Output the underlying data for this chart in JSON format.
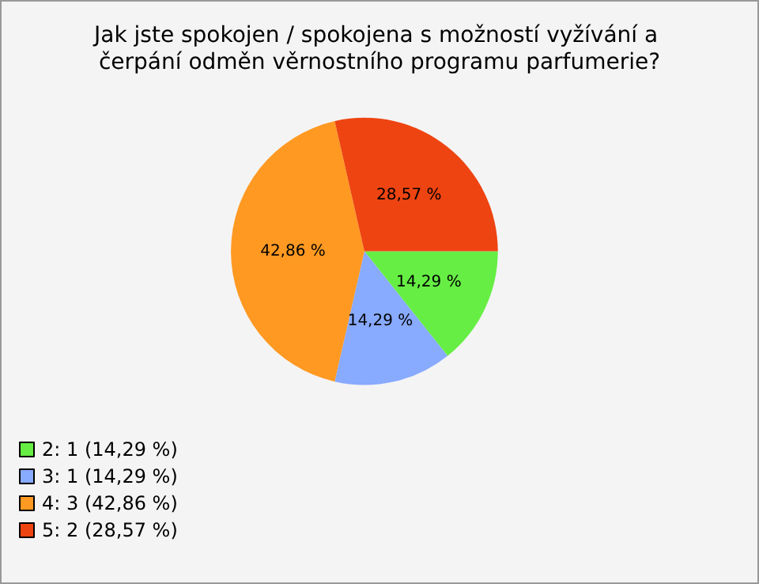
{
  "chart_data": {
    "type": "pie",
    "title": "Jak jste spokojen / spokojena s možností vyžívání a čerpání odměn věrnostního programu parfumerie?",
    "categories": [
      "2: 1 (14,29 %)",
      "3: 1 (14,29 %)",
      "4: 3 (42,86 %)",
      "5: 2 (28,57 %)"
    ],
    "values": [
      14.29,
      14.29,
      42.86,
      28.57
    ],
    "value_labels": [
      "14,29 %",
      "14,29 %",
      "42,86 %",
      "28,57 %"
    ],
    "colors": [
      "#66ee44",
      "#88aaff",
      "#ff9922",
      "#ee4411"
    ],
    "legend": "bottom left"
  }
}
